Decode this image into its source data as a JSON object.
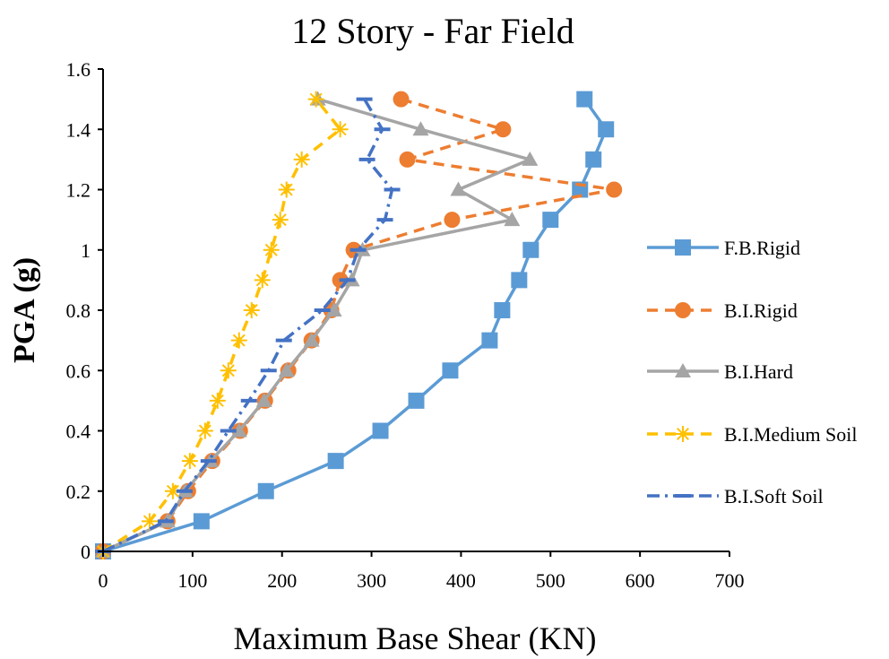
{
  "chart_data": {
    "type": "line",
    "title": "12 Story - Far Field",
    "xlabel": "Maximum Base Shear (KN)",
    "ylabel": "PGA (g)",
    "xlim": [
      0,
      700
    ],
    "ylim": [
      0,
      1.6
    ],
    "x_ticks": [
      "0",
      "100",
      "200",
      "300",
      "400",
      "500",
      "600",
      "700"
    ],
    "y_ticks": [
      "0",
      "0.2",
      "0.4",
      "0.6",
      "0.8",
      "1",
      "1.2",
      "1.4",
      "1.6"
    ],
    "grid": false,
    "legend_position": "right",
    "series": [
      {
        "name": "F.B.Rigid",
        "color": "#5B9BD5",
        "dash": "solid",
        "marker": "square",
        "points": [
          [
            0,
            0
          ],
          [
            110,
            0.1
          ],
          [
            182,
            0.2
          ],
          [
            260,
            0.3
          ],
          [
            310,
            0.4
          ],
          [
            350,
            0.5
          ],
          [
            388,
            0.6
          ],
          [
            432,
            0.7
          ],
          [
            446,
            0.8
          ],
          [
            465,
            0.9
          ],
          [
            478,
            1.0
          ],
          [
            500,
            1.1
          ],
          [
            533,
            1.2
          ],
          [
            548,
            1.3
          ],
          [
            562,
            1.4
          ],
          [
            538,
            1.5
          ]
        ]
      },
      {
        "name": "B.I.Rigid",
        "color": "#ED7D31",
        "dash": "dashed",
        "marker": "circle",
        "points": [
          [
            0,
            0
          ],
          [
            72,
            0.1
          ],
          [
            95,
            0.2
          ],
          [
            122,
            0.3
          ],
          [
            153,
            0.4
          ],
          [
            181,
            0.5
          ],
          [
            207,
            0.6
          ],
          [
            233,
            0.7
          ],
          [
            255,
            0.8
          ],
          [
            265,
            0.9
          ],
          [
            280,
            1.0
          ],
          [
            390,
            1.1
          ],
          [
            571,
            1.2
          ],
          [
            340,
            1.3
          ],
          [
            447,
            1.4
          ],
          [
            333,
            1.5
          ]
        ]
      },
      {
        "name": "B.I.Hard",
        "color": "#A5A5A5",
        "dash": "solid",
        "marker": "triangle",
        "points": [
          [
            0,
            0
          ],
          [
            72,
            0.1
          ],
          [
            92,
            0.2
          ],
          [
            120,
            0.3
          ],
          [
            152,
            0.4
          ],
          [
            180,
            0.5
          ],
          [
            205,
            0.6
          ],
          [
            233,
            0.7
          ],
          [
            258,
            0.8
          ],
          [
            278,
            0.9
          ],
          [
            290,
            1.0
          ],
          [
            457,
            1.1
          ],
          [
            397,
            1.2
          ],
          [
            477,
            1.3
          ],
          [
            355,
            1.4
          ],
          [
            240,
            1.5
          ]
        ]
      },
      {
        "name": "B.I.Medium Soil",
        "color": "#FFC000",
        "dash": "dashed",
        "marker": "asterisk",
        "points": [
          [
            0,
            0
          ],
          [
            52,
            0.1
          ],
          [
            78,
            0.2
          ],
          [
            97,
            0.3
          ],
          [
            114,
            0.4
          ],
          [
            128,
            0.5
          ],
          [
            140,
            0.6
          ],
          [
            152,
            0.7
          ],
          [
            166,
            0.8
          ],
          [
            178,
            0.9
          ],
          [
            188,
            1.0
          ],
          [
            198,
            1.1
          ],
          [
            205,
            1.2
          ],
          [
            222,
            1.3
          ],
          [
            265,
            1.4
          ],
          [
            238,
            1.5
          ]
        ]
      },
      {
        "name": "B.I.Soft Soil",
        "color": "#4472C4",
        "dash": "dashdot",
        "marker": "dash",
        "points": [
          [
            0,
            0
          ],
          [
            70,
            0.1
          ],
          [
            91,
            0.2
          ],
          [
            118,
            0.3
          ],
          [
            140,
            0.4
          ],
          [
            163,
            0.5
          ],
          [
            185,
            0.6
          ],
          [
            202,
            0.7
          ],
          [
            245,
            0.8
          ],
          [
            273,
            0.9
          ],
          [
            285,
            1.0
          ],
          [
            315,
            1.1
          ],
          [
            323,
            1.2
          ],
          [
            295,
            1.3
          ],
          [
            312,
            1.4
          ],
          [
            292,
            1.5
          ]
        ]
      }
    ]
  }
}
